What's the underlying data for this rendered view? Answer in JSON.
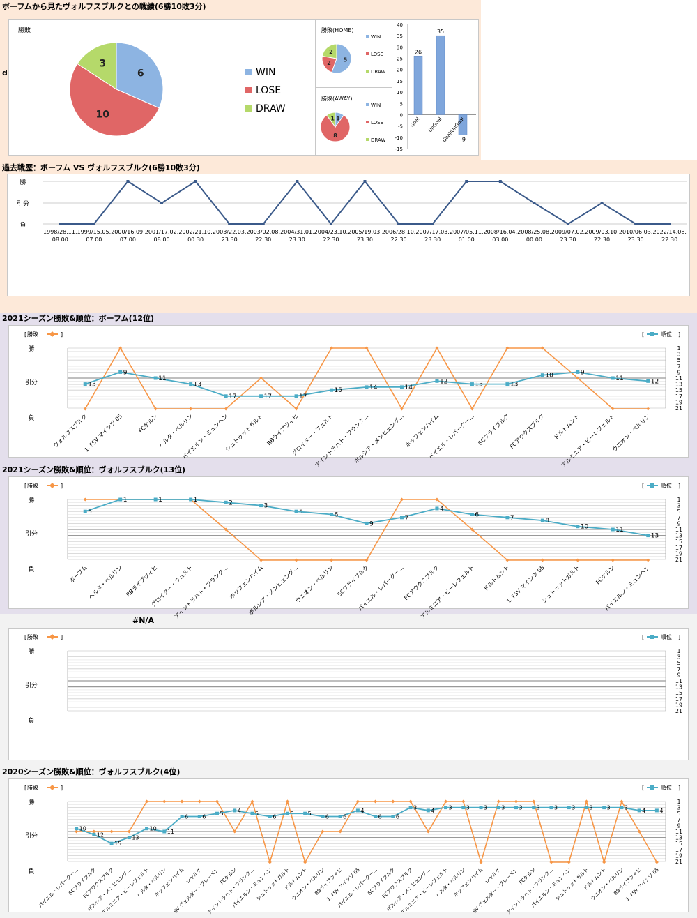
{
  "header": {
    "title": "ボーフムから見たヴォルフスブルクとの戦績(6勝10敗3分)",
    "side_mark": "d"
  },
  "chart_data": [
    {
      "type": "pie",
      "id": "overall",
      "title": "勝敗",
      "categories": [
        "WIN",
        "LOSE",
        "DRAW"
      ],
      "values": [
        6,
        10,
        3
      ],
      "colors": [
        "#8db4e2",
        "#e06666",
        "#b5d96a"
      ]
    },
    {
      "type": "pie",
      "id": "home",
      "title": "勝敗(HOME)",
      "categories": [
        "WIN",
        "LOSE",
        "DRAW"
      ],
      "values": [
        5,
        2,
        2
      ],
      "colors": [
        "#8db4e2",
        "#e06666",
        "#b5d96a"
      ]
    },
    {
      "type": "pie",
      "id": "away",
      "title": "勝敗(AWAY)",
      "categories": [
        "WIN",
        "LOSE",
        "DRAW"
      ],
      "values": [
        1,
        8,
        1
      ],
      "colors": [
        "#8db4e2",
        "#e06666",
        "#b5d96a"
      ]
    },
    {
      "type": "bar",
      "id": "goals",
      "categories": [
        "Goal",
        "UnGoal",
        "Goal/UnGoal"
      ],
      "values": [
        26,
        35,
        -9
      ],
      "ylim": [
        -15,
        40
      ],
      "yticks": [
        "40",
        "35",
        "30",
        "25",
        "20",
        "15",
        "10",
        "5",
        "0",
        "-5",
        "-10",
        "-15"
      ]
    },
    {
      "type": "line",
      "id": "history",
      "title": "過去戦歴：ボーフム VS ヴォルフスブルク(6勝10敗3分)",
      "y_labels": [
        "勝",
        "引分",
        "負"
      ],
      "x": [
        "1998/28.11.\n08:00",
        "1999/15.05.\n07:00",
        "2000/16.09.\n07:00",
        "2001/17.02.\n08:00",
        "2002/21.10.\n00:30",
        "2003/22.03.\n23:30",
        "2003/02.08.\n22:30",
        "2004/31.01.\n23:30",
        "2004/23.10.\n22:30",
        "2005/19.03.\n23:30",
        "2006/28.10.\n22:30",
        "2007/17.03.\n23:30",
        "2007/05.11.\n01:00",
        "2008/16.04.\n03:00",
        "2008/25.08.\n00:00",
        "2009/07.02.\n23:30",
        "2009/03.10.\n22:30",
        "2010/06.03.\n23:30",
        "2022/14.08.\n22:30"
      ],
      "series": [
        {
          "values": [
            0,
            0,
            2,
            1,
            2,
            0,
            0,
            2,
            0,
            2,
            0,
            0,
            2,
            2,
            1,
            0,
            1,
            0,
            0
          ]
        }
      ]
    },
    {
      "type": "line",
      "id": "s2021_bochum",
      "title": "2021シーズン勝敗&順位：ボーフム(12位)",
      "legend_left": "勝敗",
      "legend_right": "順位",
      "y_labels": [
        "勝",
        "引分",
        "負"
      ],
      "rank_ticks": [
        "1",
        "3",
        "5",
        "7",
        "9",
        "11",
        "13",
        "15",
        "17",
        "19",
        "21"
      ],
      "categories": [
        "ヴォルフスブルク",
        "1. FSV マインツ 05",
        "FCケルン",
        "ヘルタ・ベルリン",
        "バイエルン・ミュンヘン",
        "シュトゥットガルト",
        "RBライプツィヒ",
        "グロイター・フュルト",
        "アイントラハト・フランク…",
        "ボルシア・メンヒェング…",
        "ホッフェンハイム",
        "バイエル・レバークー…",
        "SCフライブルク",
        "FCアウクスブルク",
        "ドルトムント",
        "アルミニア・ビーレフェルト",
        "ウニオン・ベルリン"
      ],
      "result": [
        0,
        2,
        0,
        0,
        0,
        1,
        0,
        2,
        2,
        0,
        2,
        0,
        2,
        2,
        1,
        0,
        0
      ],
      "rank": [
        13,
        9,
        11,
        13,
        17,
        17,
        17,
        15,
        14,
        14,
        12,
        13,
        13,
        10,
        9,
        11,
        12
      ]
    },
    {
      "type": "line",
      "id": "s2021_wolfsburg",
      "title": "2021シーズン勝敗&順位：ヴォルフスブルク(13位)",
      "legend_left": "勝敗",
      "legend_right": "順位",
      "y_labels": [
        "勝",
        "引分",
        "負"
      ],
      "rank_ticks": [
        "1",
        "3",
        "5",
        "7",
        "9",
        "11",
        "13",
        "15",
        "17",
        "19",
        "21"
      ],
      "categories": [
        "ボーフム",
        "ヘルタ・ベルリン",
        "RBライプツィヒ",
        "グロイター・フュルト",
        "アイントラハト・フランク…",
        "ホッフェンハイム",
        "ボルシア・メンヒェング…",
        "ウニオン・ベルリン",
        "SCフライブルク",
        "バイエル・レバークー…",
        "FCアウクスブルク",
        "アルミニア・ビーレフェルト",
        "ドルトムント",
        "1. FSV マインツ 05",
        "シュトゥットガルト",
        "FCケルン",
        "バイエルン・ミュンヘン"
      ],
      "result": [
        2,
        2,
        2,
        2,
        1,
        0,
        0,
        0,
        0,
        2,
        2,
        1,
        0,
        0,
        0,
        0,
        0
      ],
      "rank": [
        5,
        1,
        1,
        1,
        2,
        3,
        5,
        6,
        9,
        7,
        4,
        6,
        7,
        8,
        10,
        11,
        13
      ]
    },
    {
      "type": "line",
      "id": "na_chart",
      "title": "#N/A",
      "legend_left": "勝敗",
      "legend_right": "順位",
      "y_labels": [
        "勝",
        "引分",
        "負"
      ],
      "rank_ticks": [
        "1",
        "3",
        "5",
        "7",
        "9",
        "11",
        "13",
        "15",
        "17",
        "19",
        "21"
      ],
      "categories": [],
      "result": [],
      "rank": []
    },
    {
      "type": "line",
      "id": "s2020_wolfsburg",
      "title": "2020シーズン勝敗&順位：ヴォルフスブルク(4位)",
      "legend_left": "勝敗",
      "legend_right": "順位",
      "y_labels": [
        "勝",
        "引分",
        "負"
      ],
      "rank_ticks": [
        "1",
        "3",
        "5",
        "7",
        "9",
        "11",
        "13",
        "15",
        "17",
        "19",
        "21"
      ],
      "categories": [
        "バイエル・レバークー…",
        "SCフライブルク",
        "FCアウクスブルク",
        "ボルシア・メンヒェング…",
        "アルミニア・ビーレフェルト",
        "ヘルタ・ベルリン",
        "ホッフェンハイム",
        "シャルケ",
        "SV ヴェルダー・ブレーメン",
        "FCケルン",
        "アイントラハト・フランク…",
        "バイエルン・ミュンヘン",
        "シュトゥットガルト",
        "ドルトムント",
        "ウニオン・ベルリン",
        "RBライプツィヒ",
        "1. FSV マインツ 05",
        "バイエル・レバークー…",
        "SCフライブルク",
        "FCアウクスブルク",
        "ボルシア・メンヒェング…",
        "アルミニア・ビーレフェルト",
        "ヘルタ・ベルリン",
        "ホッフェンハイム",
        "シャルケ",
        "SV ヴェルダー・ブレーメン",
        "FCケルン",
        "アイントラハト・フランク…",
        "バイエルン・ミュンヘン",
        "シュトゥットガルト",
        "ドルトムント",
        "ウニオン・ベルリン",
        "RBライプツィヒ",
        "1. FSV マインツ 05"
      ],
      "result": [
        1,
        1,
        1,
        1,
        2,
        2,
        2,
        2,
        2,
        1,
        2,
        0,
        2,
        0,
        1,
        1,
        2,
        2,
        2,
        2,
        1,
        2,
        2,
        0,
        2,
        2,
        2,
        0,
        0,
        2,
        0,
        2,
        1,
        0
      ],
      "rank": [
        10,
        12,
        15,
        13,
        10,
        11,
        6,
        6,
        5,
        4,
        5,
        6,
        5,
        5,
        6,
        6,
        4,
        6,
        6,
        3,
        4,
        3,
        3,
        3,
        3,
        3,
        3,
        3,
        3,
        3,
        3,
        3,
        4,
        4
      ]
    }
  ]
}
